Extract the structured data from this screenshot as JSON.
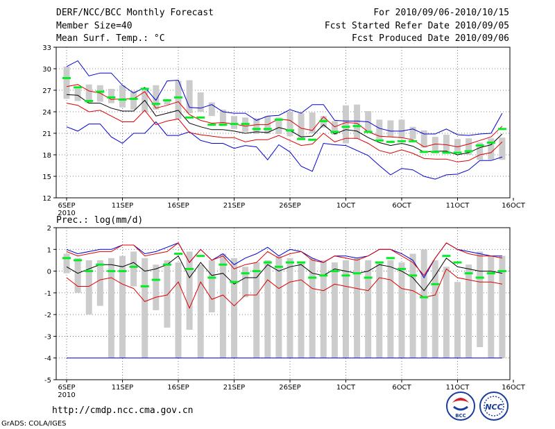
{
  "header": {
    "title": "DERF/NCC/BCC Monthly Forecast",
    "member_size": "Member Size=40",
    "forecast_range": "For 2010/09/06-2010/10/15",
    "fcst_started": "Fcst Started Refer Date 2010/09/05",
    "fcst_produced": "Fcst Produced Date 2010/09/06"
  },
  "footer": {
    "url": "http://cmdp.ncc.cma.gov.cn",
    "grads": "GrADS: COLA/IGES",
    "logo_left_text": "BCC",
    "logo_right_text": "NCC"
  },
  "colors": {
    "box": "#cccccc",
    "median": "#00ee22",
    "mean": "#000000",
    "std_band": "#dd0000",
    "envelope": "#0000cc",
    "grid": "#555555"
  },
  "chart_data": [
    {
      "type": "box",
      "title": "Mean Surf. Temp.: °C",
      "ylabel": "",
      "ylim": [
        12,
        33
      ],
      "yticks": [
        12,
        15,
        18,
        21,
        24,
        27,
        30,
        33
      ],
      "xlabel": "",
      "xtick_labels": [
        "6SEP",
        "11SEP",
        "16SEP",
        "21SEP",
        "26SEP",
        "1OCT",
        "6OCT",
        "11OCT",
        "16OCT"
      ],
      "xtick_year": "2010",
      "days": 40,
      "box_low": [
        25.8,
        25.5,
        25.2,
        25.4,
        25.2,
        24.6,
        24.3,
        24.0,
        24.3,
        25.0,
        23.0,
        23.8,
        24.0,
        23.4,
        22.0,
        21.6,
        21.2,
        20.9,
        20.9,
        20.9,
        20.6,
        20.1,
        21.0,
        21.8,
        20.8,
        19.6,
        20.2,
        21.2,
        20.2,
        20.5,
        20.3,
        20.2,
        19.0,
        18.2,
        18.5,
        18.5,
        18.0,
        17.3,
        17.3,
        17.3
      ],
      "box_high": [
        30.3,
        27.2,
        27.8,
        27.7,
        27.2,
        27.7,
        26.9,
        27.0,
        27.7,
        25.6,
        28.3,
        28.4,
        26.7,
        25.3,
        24.3,
        23.4,
        23.2,
        23.1,
        23.4,
        23.2,
        24.0,
        23.8,
        23.9,
        23.4,
        22.7,
        24.9,
        25.0,
        24.1,
        22.9,
        22.8,
        22.9,
        21.9,
        21.4,
        20.5,
        20.8,
        20.2,
        20.3,
        19.7,
        20.3,
        20.4
      ],
      "median": [
        28.7,
        27.4,
        25.5,
        26.8,
        26.0,
        25.7,
        25.8,
        27.2,
        25.1,
        25.6,
        26.0,
        23.2,
        23.2,
        22.2,
        22.2,
        22.3,
        22.3,
        21.6,
        21.6,
        22.9,
        21.4,
        20.2,
        20.1,
        22.7,
        21.2,
        21.9,
        22.0,
        21.2,
        20.0,
        19.8,
        19.9,
        19.9,
        18.4,
        18.4,
        18.3,
        18.3,
        18.5,
        19.3,
        19.7,
        21.6
      ],
      "mean": [
        26.4,
        26.3,
        25.2,
        25.2,
        24.5,
        24.1,
        24.1,
        25.6,
        23.4,
        23.8,
        24.2,
        22.4,
        21.9,
        21.5,
        21.5,
        21.3,
        21.0,
        21.2,
        21.1,
        21.8,
        21.4,
        20.5,
        20.6,
        22.2,
        20.9,
        21.5,
        21.3,
        20.4,
        19.7,
        19.3,
        19.6,
        19.2,
        18.4,
        18.5,
        18.5,
        18.0,
        18.3,
        19.0,
        19.4,
        20.9
      ],
      "mean_plus_std": [
        27.5,
        27.8,
        26.9,
        26.6,
        25.7,
        25.8,
        25.8,
        26.8,
        24.5,
        24.9,
        25.4,
        23.6,
        22.8,
        22.4,
        22.5,
        22.3,
        22.0,
        22.2,
        22.2,
        23.0,
        22.8,
        21.7,
        21.4,
        23.3,
        21.9,
        22.5,
        22.4,
        21.2,
        20.6,
        20.5,
        20.4,
        20.1,
        19.1,
        19.5,
        19.4,
        19.1,
        19.5,
        20.0,
        20.5,
        22.0
      ],
      "mean_minus_std": [
        25.2,
        24.9,
        24.0,
        24.2,
        23.4,
        22.6,
        22.6,
        24.2,
        22.2,
        22.7,
        23.0,
        21.1,
        20.8,
        20.6,
        20.4,
        20.4,
        19.8,
        20.1,
        20.1,
        20.7,
        20.0,
        19.3,
        19.5,
        21.0,
        19.8,
        20.3,
        20.3,
        19.6,
        18.6,
        18.2,
        18.7,
        18.2,
        17.5,
        17.4,
        17.4,
        17.0,
        17.2,
        18.0,
        18.3,
        19.8
      ],
      "max": [
        30.3,
        31.1,
        29.0,
        29.4,
        29.4,
        27.7,
        26.6,
        27.4,
        25.6,
        28.3,
        28.4,
        24.6,
        24.5,
        25.0,
        24.0,
        23.8,
        23.8,
        22.8,
        23.4,
        23.5,
        24.3,
        23.8,
        25.0,
        25.0,
        22.8,
        22.7,
        22.7,
        22.6,
        21.7,
        21.3,
        21.3,
        21.6,
        20.9,
        20.9,
        21.6,
        20.8,
        20.7,
        20.9,
        21.0,
        23.8
      ],
      "min": [
        21.9,
        21.3,
        22.3,
        22.3,
        20.5,
        19.6,
        21.0,
        21.0,
        22.6,
        20.7,
        20.7,
        21.2,
        20.0,
        19.6,
        19.6,
        18.9,
        19.3,
        19.1,
        17.3,
        19.4,
        18.4,
        16.4,
        15.7,
        19.6,
        19.4,
        19.3,
        18.6,
        17.9,
        16.5,
        15.2,
        16.1,
        15.9,
        15.0,
        14.6,
        15.2,
        15.3,
        15.9,
        17.2,
        17.2,
        17.7
      ]
    },
    {
      "type": "box",
      "title": "Prec.: log(mm/d)",
      "ylabel": "",
      "ylim": [
        -5,
        2
      ],
      "yticks": [
        -5,
        -4,
        -3,
        -2,
        -1,
        0,
        1,
        2
      ],
      "xlabel": "",
      "xtick_labels": [
        "6SEP",
        "11SEP",
        "16SEP",
        "21SEP",
        "26SEP",
        "1OCT",
        "6OCT",
        "11OCT",
        "16OCT"
      ],
      "xtick_year": "2010",
      "days": 40,
      "box_low": [
        -0.1,
        -1.0,
        -2.0,
        -1.6,
        -4.0,
        -4.0,
        -0.7,
        -4.0,
        -1.8,
        -2.6,
        -4.0,
        -2.7,
        -4.0,
        -1.9,
        -4.0,
        -4.0,
        -1.2,
        -4.0,
        -4.0,
        -4.0,
        -4.0,
        -4.0,
        -4.0,
        -4.0,
        -4.0,
        -4.0,
        -4.0,
        -4.0,
        -4.0,
        -4.0,
        -4.0,
        -4.0,
        -4.0,
        -4.0,
        -4.0,
        -4.0,
        -4.0,
        -3.5,
        -4.0,
        -4.0
      ],
      "box_high": [
        0.8,
        0.6,
        0.5,
        0.5,
        0.6,
        0.7,
        0.9,
        0.6,
        0.3,
        0.5,
        0.4,
        0.9,
        0.3,
        0.5,
        0.8,
        0.6,
        0.2,
        0.4,
        0.5,
        0.7,
        0.6,
        0.4,
        0.6,
        0.5,
        0.4,
        0.5,
        0.6,
        0.5,
        0.4,
        0.5,
        0.4,
        0.8,
        1.0,
        0.5,
        0.2,
        -0.5,
        0.3,
        0.9,
        0.7,
        0.7
      ],
      "median": [
        0.6,
        0.5,
        0.0,
        0.3,
        0.0,
        0.0,
        0.2,
        -0.7,
        -0.4,
        0.3,
        0.8,
        0.1,
        0.7,
        -0.3,
        0.3,
        -0.5,
        -0.1,
        0.0,
        0.4,
        0.2,
        0.4,
        0.4,
        -0.3,
        -0.2,
        0.0,
        -0.2,
        -0.1,
        -0.3,
        0.4,
        0.6,
        0.1,
        -0.2,
        -1.2,
        -0.6,
        0.7,
        0.4,
        -0.1,
        -0.3,
        -0.1,
        0.0
      ],
      "mean": [
        0.2,
        -0.1,
        0.1,
        0.3,
        0.3,
        0.2,
        0.4,
        0.0,
        0.1,
        0.3,
        0.7,
        -0.3,
        0.4,
        -0.2,
        -0.1,
        -0.6,
        -0.3,
        -0.3,
        0.3,
        0.0,
        0.2,
        0.3,
        -0.1,
        -0.2,
        0.1,
        0.0,
        -0.1,
        0.0,
        0.3,
        0.2,
        0.0,
        -0.3,
        -0.9,
        -0.2,
        0.6,
        0.2,
        0.1,
        0.0,
        0.0,
        -0.1
      ],
      "mean_plus_std": [
        0.9,
        0.7,
        0.8,
        0.9,
        0.9,
        1.2,
        1.2,
        0.7,
        0.8,
        0.9,
        1.3,
        0.4,
        1.0,
        0.5,
        0.7,
        0.1,
        0.3,
        0.4,
        0.9,
        0.6,
        0.8,
        0.9,
        0.5,
        0.4,
        0.7,
        0.6,
        0.5,
        0.7,
        1.0,
        1.0,
        0.7,
        0.4,
        -0.2,
        0.6,
        1.3,
        1.0,
        0.8,
        0.7,
        0.7,
        0.6
      ],
      "mean_minus_std": [
        -0.3,
        -0.7,
        -0.7,
        -0.4,
        -0.3,
        -0.6,
        -0.8,
        -1.4,
        -1.2,
        -1.1,
        -0.5,
        -1.7,
        -0.5,
        -1.3,
        -1.1,
        -1.6,
        -1.1,
        -1.1,
        -0.4,
        -0.8,
        -0.5,
        -0.4,
        -0.8,
        -0.9,
        -0.6,
        -0.7,
        -0.8,
        -0.9,
        -0.3,
        -0.4,
        -0.8,
        -0.9,
        -1.2,
        -1.1,
        0.1,
        -0.3,
        -0.4,
        -0.5,
        -0.5,
        -0.6
      ],
      "max": [
        1.0,
        0.8,
        0.9,
        1.0,
        1.0,
        1.2,
        1.2,
        0.8,
        0.9,
        1.1,
        1.3,
        0.4,
        1.0,
        0.5,
        0.8,
        0.3,
        0.6,
        0.8,
        1.1,
        0.7,
        1.0,
        0.9,
        0.6,
        0.4,
        0.7,
        0.7,
        0.6,
        0.7,
        1.0,
        1.0,
        0.8,
        0.5,
        -0.3,
        0.6,
        1.3,
        1.0,
        0.9,
        0.8,
        0.7,
        0.7
      ],
      "min": [
        -4.0,
        -4.0,
        -4.0,
        -4.0,
        -4.0,
        -4.0,
        -4.0,
        -4.0,
        -4.0,
        -4.0,
        -4.0,
        -4.0,
        -4.0,
        -4.0,
        -4.0,
        -4.0,
        -4.0,
        -4.0,
        -4.0,
        -4.0,
        -4.0,
        -4.0,
        -4.0,
        -4.0,
        -4.0,
        -4.0,
        -4.0,
        -4.0,
        -4.0,
        -4.0,
        -4.0,
        -4.0,
        -4.0,
        -4.0,
        -4.0,
        -4.0,
        -4.0,
        -4.0,
        -4.0,
        -4.0
      ]
    }
  ]
}
